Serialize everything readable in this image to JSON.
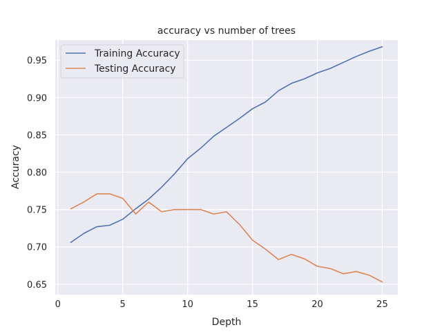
{
  "chart_data": {
    "type": "line",
    "title": "accuracy vs number of trees",
    "xlabel": "Depth",
    "ylabel": "Accuracy",
    "xlim": [
      -0.2,
      26.2
    ],
    "ylim": [
      0.636,
      0.977
    ],
    "xticks": [
      0,
      5,
      10,
      15,
      20,
      25
    ],
    "yticks": [
      0.65,
      0.7,
      0.75,
      0.8,
      0.85,
      0.9,
      0.95
    ],
    "grid": true,
    "legend_position": "top-left",
    "x": [
      1,
      2,
      3,
      4,
      5,
      6,
      7,
      8,
      9,
      10,
      11,
      12,
      13,
      14,
      15,
      16,
      17,
      18,
      19,
      20,
      21,
      22,
      23,
      24,
      25
    ],
    "series": [
      {
        "name": "Training Accuracy",
        "color": "#4c72b0",
        "values": [
          0.706,
          0.718,
          0.727,
          0.729,
          0.737,
          0.751,
          0.764,
          0.78,
          0.798,
          0.818,
          0.832,
          0.848,
          0.86,
          0.872,
          0.885,
          0.894,
          0.909,
          0.919,
          0.925,
          0.933,
          0.939,
          0.947,
          0.955,
          0.962,
          0.968
        ]
      },
      {
        "name": "Testing Accuracy",
        "color": "#dd8452",
        "values": [
          0.751,
          0.76,
          0.771,
          0.771,
          0.765,
          0.744,
          0.76,
          0.747,
          0.75,
          0.75,
          0.75,
          0.744,
          0.747,
          0.73,
          0.709,
          0.697,
          0.683,
          0.69,
          0.684,
          0.674,
          0.671,
          0.664,
          0.667,
          0.662,
          0.653
        ]
      }
    ]
  }
}
